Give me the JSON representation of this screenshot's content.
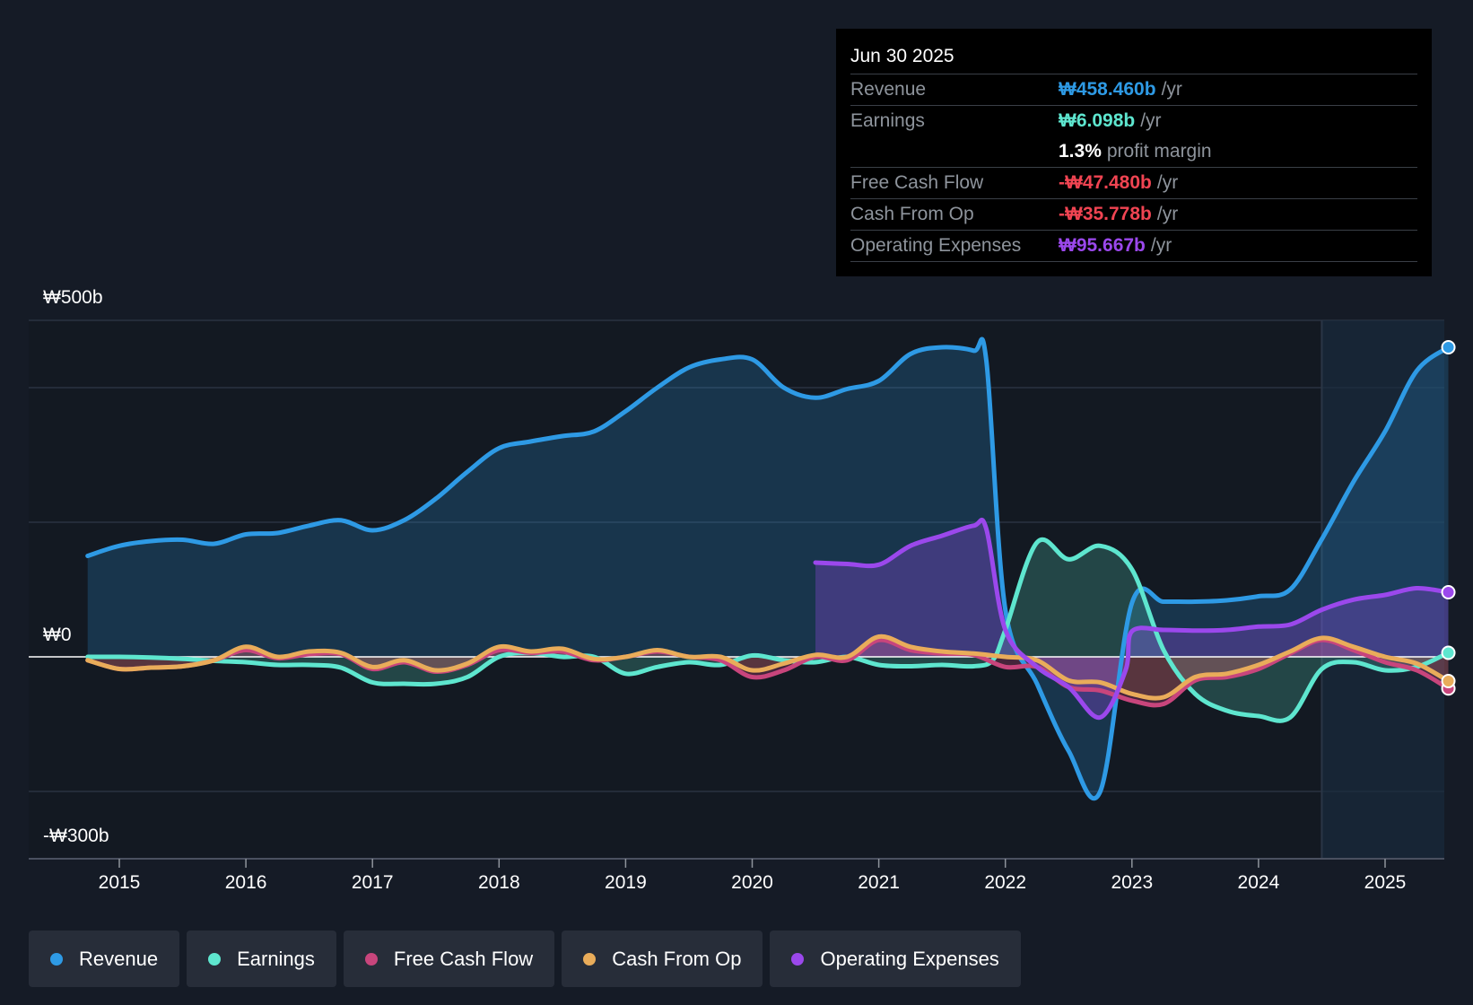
{
  "colors": {
    "revenue": "#2e9ae5",
    "earnings": "#5ee6cf",
    "fcf": "#c8457c",
    "cfo": "#e9ac5a",
    "opex": "#9b48ec",
    "positive_value": "#2e9ae5",
    "negative_value": "#f04452"
  },
  "tooltip": {
    "date": "Jun 30 2025",
    "rows": {
      "revenue": {
        "label": "Revenue",
        "value": "₩458.460b",
        "unit": "/yr"
      },
      "earnings": {
        "label": "Earnings",
        "value": "₩6.098b",
        "unit": "/yr"
      },
      "margin": {
        "value": "1.3%",
        "unit": "profit margin"
      },
      "fcf": {
        "label": "Free Cash Flow",
        "value": "-₩47.480b",
        "unit": "/yr"
      },
      "cfo": {
        "label": "Cash From Op",
        "value": "-₩35.778b",
        "unit": "/yr"
      },
      "opex": {
        "label": "Operating Expenses",
        "value": "₩95.667b",
        "unit": "/yr"
      }
    }
  },
  "legend": [
    {
      "key": "revenue",
      "label": "Revenue"
    },
    {
      "key": "earnings",
      "label": "Earnings"
    },
    {
      "key": "fcf",
      "label": "Free Cash Flow"
    },
    {
      "key": "cfo",
      "label": "Cash From Op"
    },
    {
      "key": "opex",
      "label": "Operating Expenses"
    }
  ],
  "chart_data": {
    "type": "area",
    "title": "",
    "xlabel": "",
    "ylabel": "",
    "y_top_label": "₩500b",
    "y_zero_label": "₩0",
    "y_bottom_label": "-₩300b",
    "ylim": [
      -300,
      500
    ],
    "xlim": [
      2014.75,
      2025.5
    ],
    "x_ticks": [
      2015,
      2016,
      2017,
      2018,
      2019,
      2020,
      2021,
      2022,
      2023,
      2024,
      2025
    ],
    "x_tick_labels": [
      "2015",
      "2016",
      "2017",
      "2018",
      "2019",
      "2020",
      "2021",
      "2022",
      "2023",
      "2024",
      "2025"
    ],
    "gridlines": [
      500,
      400,
      200,
      0,
      -200
    ],
    "forecast_start": 2024.5,
    "series": [
      {
        "key": "revenue",
        "name": "Revenue",
        "x": [
          2014.75,
          2015,
          2015.25,
          2015.5,
          2015.75,
          2016,
          2016.25,
          2016.5,
          2016.75,
          2017,
          2017.25,
          2017.5,
          2017.75,
          2018,
          2018.25,
          2018.5,
          2018.75,
          2019,
          2019.25,
          2019.5,
          2019.75,
          2020,
          2020.25,
          2020.5,
          2020.75,
          2021,
          2021.25,
          2021.5,
          2021.75,
          2021.85,
          2022,
          2022.25,
          2022.5,
          2022.75,
          2023,
          2023.25,
          2023.5,
          2023.75,
          2024,
          2024.25,
          2024.5,
          2024.75,
          2025,
          2025.25,
          2025.5
        ],
        "y": [
          150,
          165,
          172,
          174,
          168,
          182,
          184,
          195,
          203,
          188,
          203,
          235,
          275,
          310,
          320,
          328,
          335,
          365,
          400,
          430,
          442,
          442,
          400,
          385,
          398,
          410,
          450,
          460,
          455,
          440,
          70,
          -40,
          -140,
          -200,
          80,
          82,
          82,
          84,
          90,
          100,
          175,
          260,
          335,
          425,
          460
        ]
      },
      {
        "key": "earnings",
        "name": "Earnings",
        "x": [
          2014.75,
          2015,
          2015.25,
          2015.5,
          2015.75,
          2016,
          2016.25,
          2016.5,
          2016.75,
          2017,
          2017.25,
          2017.5,
          2017.75,
          2018,
          2018.25,
          2018.5,
          2018.75,
          2019,
          2019.25,
          2019.5,
          2019.75,
          2020,
          2020.25,
          2020.5,
          2020.75,
          2021,
          2021.25,
          2021.5,
          2021.75,
          2021.9,
          2022,
          2022.25,
          2022.5,
          2022.75,
          2023,
          2023.25,
          2023.5,
          2023.75,
          2024,
          2024.25,
          2024.5,
          2024.75,
          2025,
          2025.25,
          2025.5
        ],
        "y": [
          0,
          0,
          -1,
          -3,
          -6,
          -8,
          -12,
          -12,
          -16,
          -38,
          -40,
          -40,
          -30,
          0,
          6,
          0,
          0,
          -25,
          -15,
          -8,
          -12,
          2,
          -5,
          -8,
          0,
          -12,
          -14,
          -12,
          -14,
          -5,
          40,
          170,
          145,
          165,
          130,
          10,
          -55,
          -80,
          -88,
          -90,
          -18,
          -8,
          -20,
          -15,
          6
        ]
      },
      {
        "key": "fcf",
        "name": "Free Cash Flow",
        "x": [
          2014.75,
          2015,
          2015.25,
          2015.5,
          2015.75,
          2016,
          2016.25,
          2016.5,
          2016.75,
          2017,
          2017.25,
          2017.5,
          2017.75,
          2018,
          2018.25,
          2018.5,
          2018.75,
          2019,
          2019.25,
          2019.5,
          2019.75,
          2020,
          2020.25,
          2020.5,
          2020.75,
          2021,
          2021.25,
          2021.5,
          2021.75,
          2022,
          2022.25,
          2022.5,
          2022.75,
          2023,
          2023.25,
          2023.5,
          2023.75,
          2024,
          2024.25,
          2024.5,
          2024.75,
          2025,
          2025.25,
          2025.5
        ],
        "y": [
          -5,
          -18,
          -16,
          -14,
          -5,
          10,
          -2,
          4,
          4,
          -18,
          -8,
          -22,
          -12,
          10,
          6,
          8,
          -5,
          0,
          8,
          0,
          -5,
          -30,
          -20,
          0,
          -5,
          25,
          10,
          5,
          3,
          -15,
          -15,
          -45,
          -50,
          -65,
          -70,
          -35,
          -30,
          -18,
          5,
          25,
          10,
          -8,
          -20,
          -47
        ]
      },
      {
        "key": "cfo",
        "name": "Cash From Op",
        "x": [
          2014.75,
          2015,
          2015.25,
          2015.5,
          2015.75,
          2016,
          2016.25,
          2016.5,
          2016.75,
          2017,
          2017.25,
          2017.5,
          2017.75,
          2018,
          2018.25,
          2018.5,
          2018.75,
          2019,
          2019.25,
          2019.5,
          2019.75,
          2020,
          2020.25,
          2020.5,
          2020.75,
          2021,
          2021.25,
          2021.5,
          2021.75,
          2022,
          2022.25,
          2022.5,
          2022.75,
          2023,
          2023.25,
          2023.5,
          2023.75,
          2024,
          2024.25,
          2024.5,
          2024.75,
          2025,
          2025.25,
          2025.5
        ],
        "y": [
          -5,
          -18,
          -16,
          -14,
          -5,
          15,
          0,
          8,
          6,
          -15,
          -5,
          -20,
          -10,
          15,
          8,
          12,
          -3,
          0,
          10,
          0,
          0,
          -20,
          -10,
          3,
          0,
          30,
          15,
          8,
          5,
          0,
          -5,
          -35,
          -38,
          -55,
          -60,
          -30,
          -25,
          -12,
          8,
          28,
          15,
          0,
          -10,
          -36
        ]
      },
      {
        "key": "opex",
        "name": "Operating Expenses",
        "x": [
          2020.5,
          2020.75,
          2021,
          2021.25,
          2021.5,
          2021.75,
          2021.85,
          2022,
          2022.25,
          2022.5,
          2022.75,
          2022.95,
          2023,
          2023.25,
          2023.5,
          2023.75,
          2024,
          2024.25,
          2024.5,
          2024.75,
          2025,
          2025.25,
          2025.5
        ],
        "y": [
          140,
          138,
          137,
          165,
          180,
          195,
          190,
          40,
          -15,
          -45,
          -90,
          -20,
          38,
          40,
          39,
          40,
          45,
          48,
          70,
          85,
          92,
          102,
          96
        ]
      }
    ]
  }
}
